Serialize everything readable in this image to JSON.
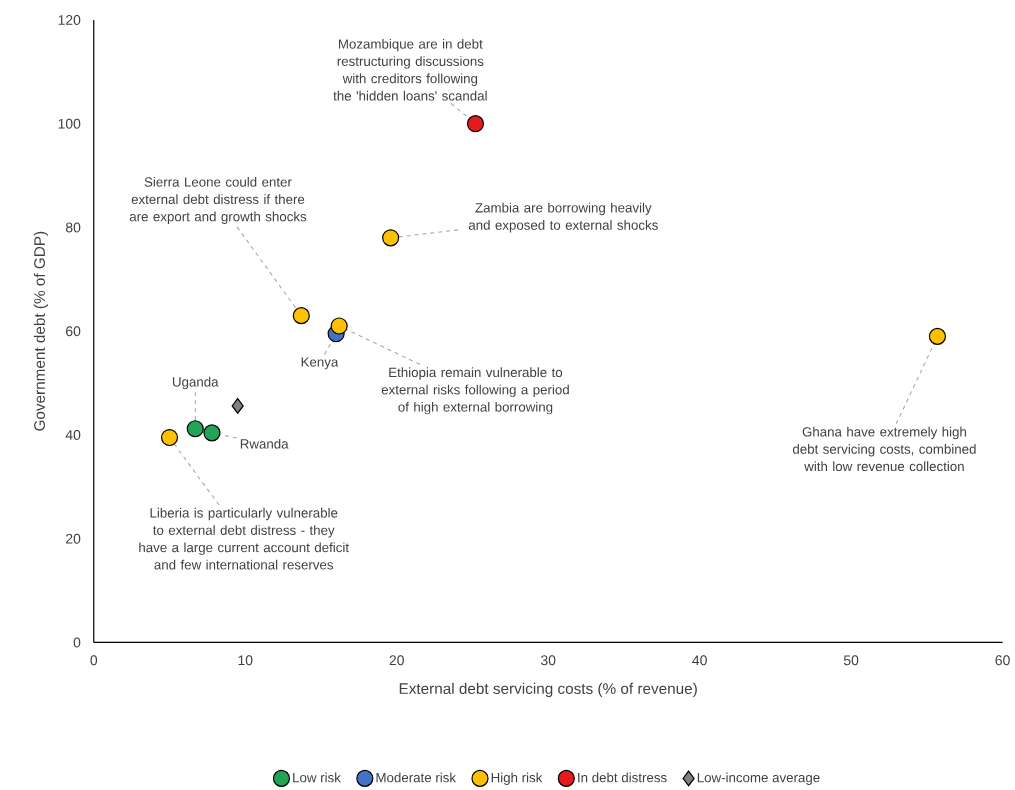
{
  "chart_data": {
    "type": "scatter",
    "xlabel": "External debt servicing costs (% of revenue)",
    "ylabel": "Government debt (% of GDP)",
    "xlim": [
      0,
      60
    ],
    "xticks": [
      0,
      10,
      20,
      30,
      40,
      50,
      60
    ],
    "ylim": [
      0,
      120
    ],
    "yticks": [
      0,
      20,
      40,
      60,
      80,
      100,
      120
    ],
    "grid": false,
    "legend": "bottom",
    "series": [
      {
        "name": "Low risk",
        "color": "#22a355",
        "marker": "circle",
        "x": [
          6.7,
          7.8
        ],
        "values": [
          41.2,
          40.4
        ]
      },
      {
        "name": "Moderate risk",
        "color": "#4472c4",
        "marker": "circle",
        "x": [
          16.0
        ],
        "values": [
          59.5
        ]
      },
      {
        "name": "High risk",
        "color": "#ffc000",
        "marker": "circle",
        "x": [
          5.0,
          13.7,
          16.2,
          19.6,
          55.7
        ],
        "values": [
          39.5,
          63,
          61,
          78,
          59
        ]
      },
      {
        "name": "In debt distress",
        "color": "#e41a1c",
        "marker": "circle",
        "x": [
          25.2
        ],
        "values": [
          100
        ]
      },
      {
        "name": "Low-income average",
        "color": "#808080",
        "marker": "diamond",
        "x": [
          9.5
        ],
        "values": [
          45.6
        ]
      }
    ],
    "annotations": [
      {
        "text": "Mozambique are in debt restructuring discussions with creditors following the 'hidden loans' scandal",
        "x": 25.2,
        "y": 100
      },
      {
        "text": "Zambia are borrowing heavily and exposed to external shocks",
        "x": 19.6,
        "y": 78
      },
      {
        "text": "Sierra Leone could enter external debt distress if there are export and growth shocks",
        "x": 13.7,
        "y": 63
      },
      {
        "text": "Ethiopia remain vulnerable to external risks following a period of high external borrowing",
        "x": 16.2,
        "y": 61
      },
      {
        "text": "Ghana have extremely high debt servicing costs, combined with low revenue collection",
        "x": 55.7,
        "y": 59
      },
      {
        "text": "Liberia is particularly vulnerable to external debt distress - they have a large current account deficit and few international reserves",
        "x": 5.0,
        "y": 39.5
      },
      {
        "text": "Uganda",
        "x": 6.7,
        "y": 41.2
      },
      {
        "text": "Rwanda",
        "x": 7.8,
        "y": 40.4
      },
      {
        "text": "Kenya",
        "x": 16.0,
        "y": 59.5
      }
    ]
  }
}
